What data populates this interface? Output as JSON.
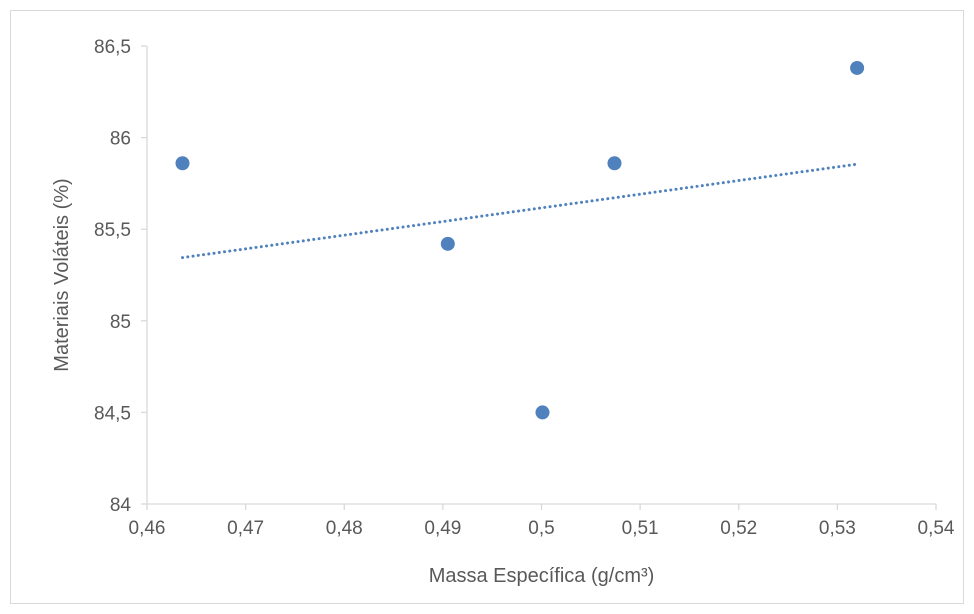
{
  "chart_data": {
    "type": "scatter",
    "title": "",
    "xlabel": "Massa Específica (g/cm³)",
    "ylabel": "Materiais Voláteis (%)",
    "xlim": [
      0.46,
      0.54
    ],
    "ylim": [
      84,
      86.5
    ],
    "x_ticks": [
      0.46,
      0.47,
      0.48,
      0.49,
      0.5,
      0.51,
      0.52,
      0.53,
      0.54
    ],
    "x_tick_labels": [
      "0,46",
      "0,47",
      "0,48",
      "0,49",
      "0,5",
      "0,51",
      "0,52",
      "0,53",
      "0,54"
    ],
    "y_ticks": [
      84,
      84.5,
      85,
      85.5,
      86,
      86.5
    ],
    "y_tick_labels": [
      "84",
      "84,5",
      "85",
      "85,5",
      "86",
      "86,5"
    ],
    "grid": false,
    "legend": "none",
    "series": [
      {
        "x": [
          0.4636,
          0.4905,
          0.5001,
          0.5074,
          0.532
        ],
        "y": [
          85.86,
          85.42,
          84.5,
          85.86,
          86.38
        ],
        "color": "#4f81bd"
      }
    ],
    "trendline": {
      "type": "linear",
      "color": "#4f81bd",
      "style": "dotted",
      "x": [
        0.4636,
        0.532
      ],
      "y": [
        85.345,
        85.855
      ]
    },
    "axis_color": "#d9d9d9",
    "text_color": "#595959"
  }
}
